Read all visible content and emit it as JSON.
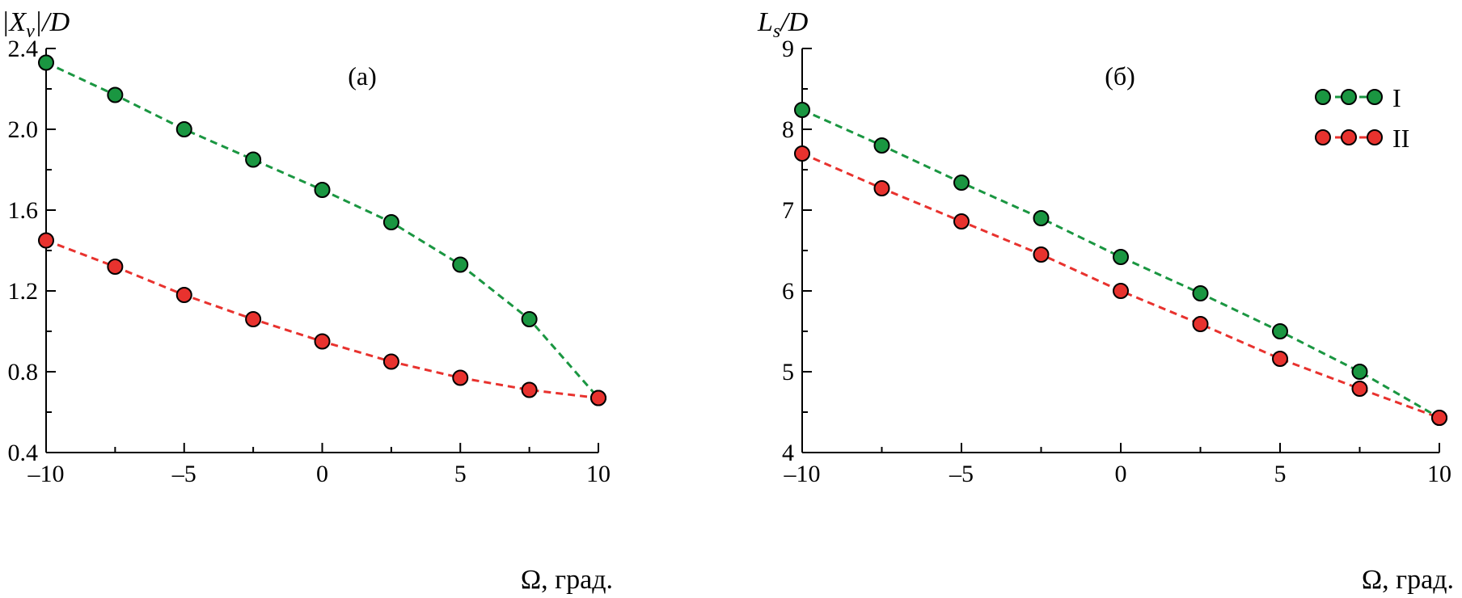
{
  "chart_data": [
    {
      "type": "line",
      "panel_label": "(а)",
      "ylabel": "|X_v|/D",
      "xlabel": "Ω, град.",
      "xlim": [
        -10,
        10
      ],
      "ylim": [
        0.4,
        2.4
      ],
      "xticks": [
        -10,
        -5,
        0,
        5,
        10
      ],
      "xtick_labels": [
        "–10",
        "–5",
        "0",
        "5",
        "10"
      ],
      "yticks": [
        0.4,
        0.8,
        1.2,
        1.6,
        2.0,
        2.4
      ],
      "ytick_labels": [
        "0.4",
        "0.8",
        "1.2",
        "1.6",
        "2.0",
        "2.4"
      ],
      "grid": false,
      "x": [
        -10,
        -7.5,
        -5,
        -2.5,
        0,
        2.5,
        5,
        7.5,
        10
      ],
      "series": [
        {
          "name": "I",
          "color": "#1a9641",
          "values": [
            2.33,
            2.17,
            2.0,
            1.85,
            1.7,
            1.54,
            1.33,
            1.06,
            0.67
          ]
        },
        {
          "name": "II",
          "color": "#e8322e",
          "values": [
            1.45,
            1.32,
            1.18,
            1.06,
            0.95,
            0.85,
            0.77,
            0.71,
            0.67
          ]
        }
      ]
    },
    {
      "type": "line",
      "panel_label": "(б)",
      "ylabel": "L_s/D",
      "xlabel": "Ω, град.",
      "xlim": [
        -10,
        10
      ],
      "ylim": [
        4,
        9
      ],
      "xticks": [
        -10,
        -5,
        0,
        5,
        10
      ],
      "xtick_labels": [
        "–10",
        "–5",
        "0",
        "5",
        "10"
      ],
      "yticks": [
        4,
        5,
        6,
        7,
        8,
        9
      ],
      "ytick_labels": [
        "4",
        "5",
        "6",
        "7",
        "8",
        "9"
      ],
      "grid": false,
      "legend_position": "top-right",
      "x": [
        -10,
        -7.5,
        -5,
        -2.5,
        0,
        2.5,
        5,
        7.5,
        10
      ],
      "series": [
        {
          "name": "I",
          "color": "#1a9641",
          "values": [
            8.24,
            7.8,
            7.34,
            6.9,
            6.42,
            5.97,
            5.5,
            5.0,
            4.43
          ]
        },
        {
          "name": "II",
          "color": "#e8322e",
          "values": [
            7.7,
            7.27,
            6.86,
            6.45,
            6.0,
            5.59,
            5.16,
            4.79,
            4.43
          ]
        }
      ]
    }
  ],
  "legend": {
    "items": [
      {
        "label": "I",
        "color": "#1a9641"
      },
      {
        "label": "II",
        "color": "#e8322e"
      }
    ]
  },
  "colors": {
    "series_I": "#1a9641",
    "series_II": "#e8322e",
    "axis": "#000000"
  }
}
